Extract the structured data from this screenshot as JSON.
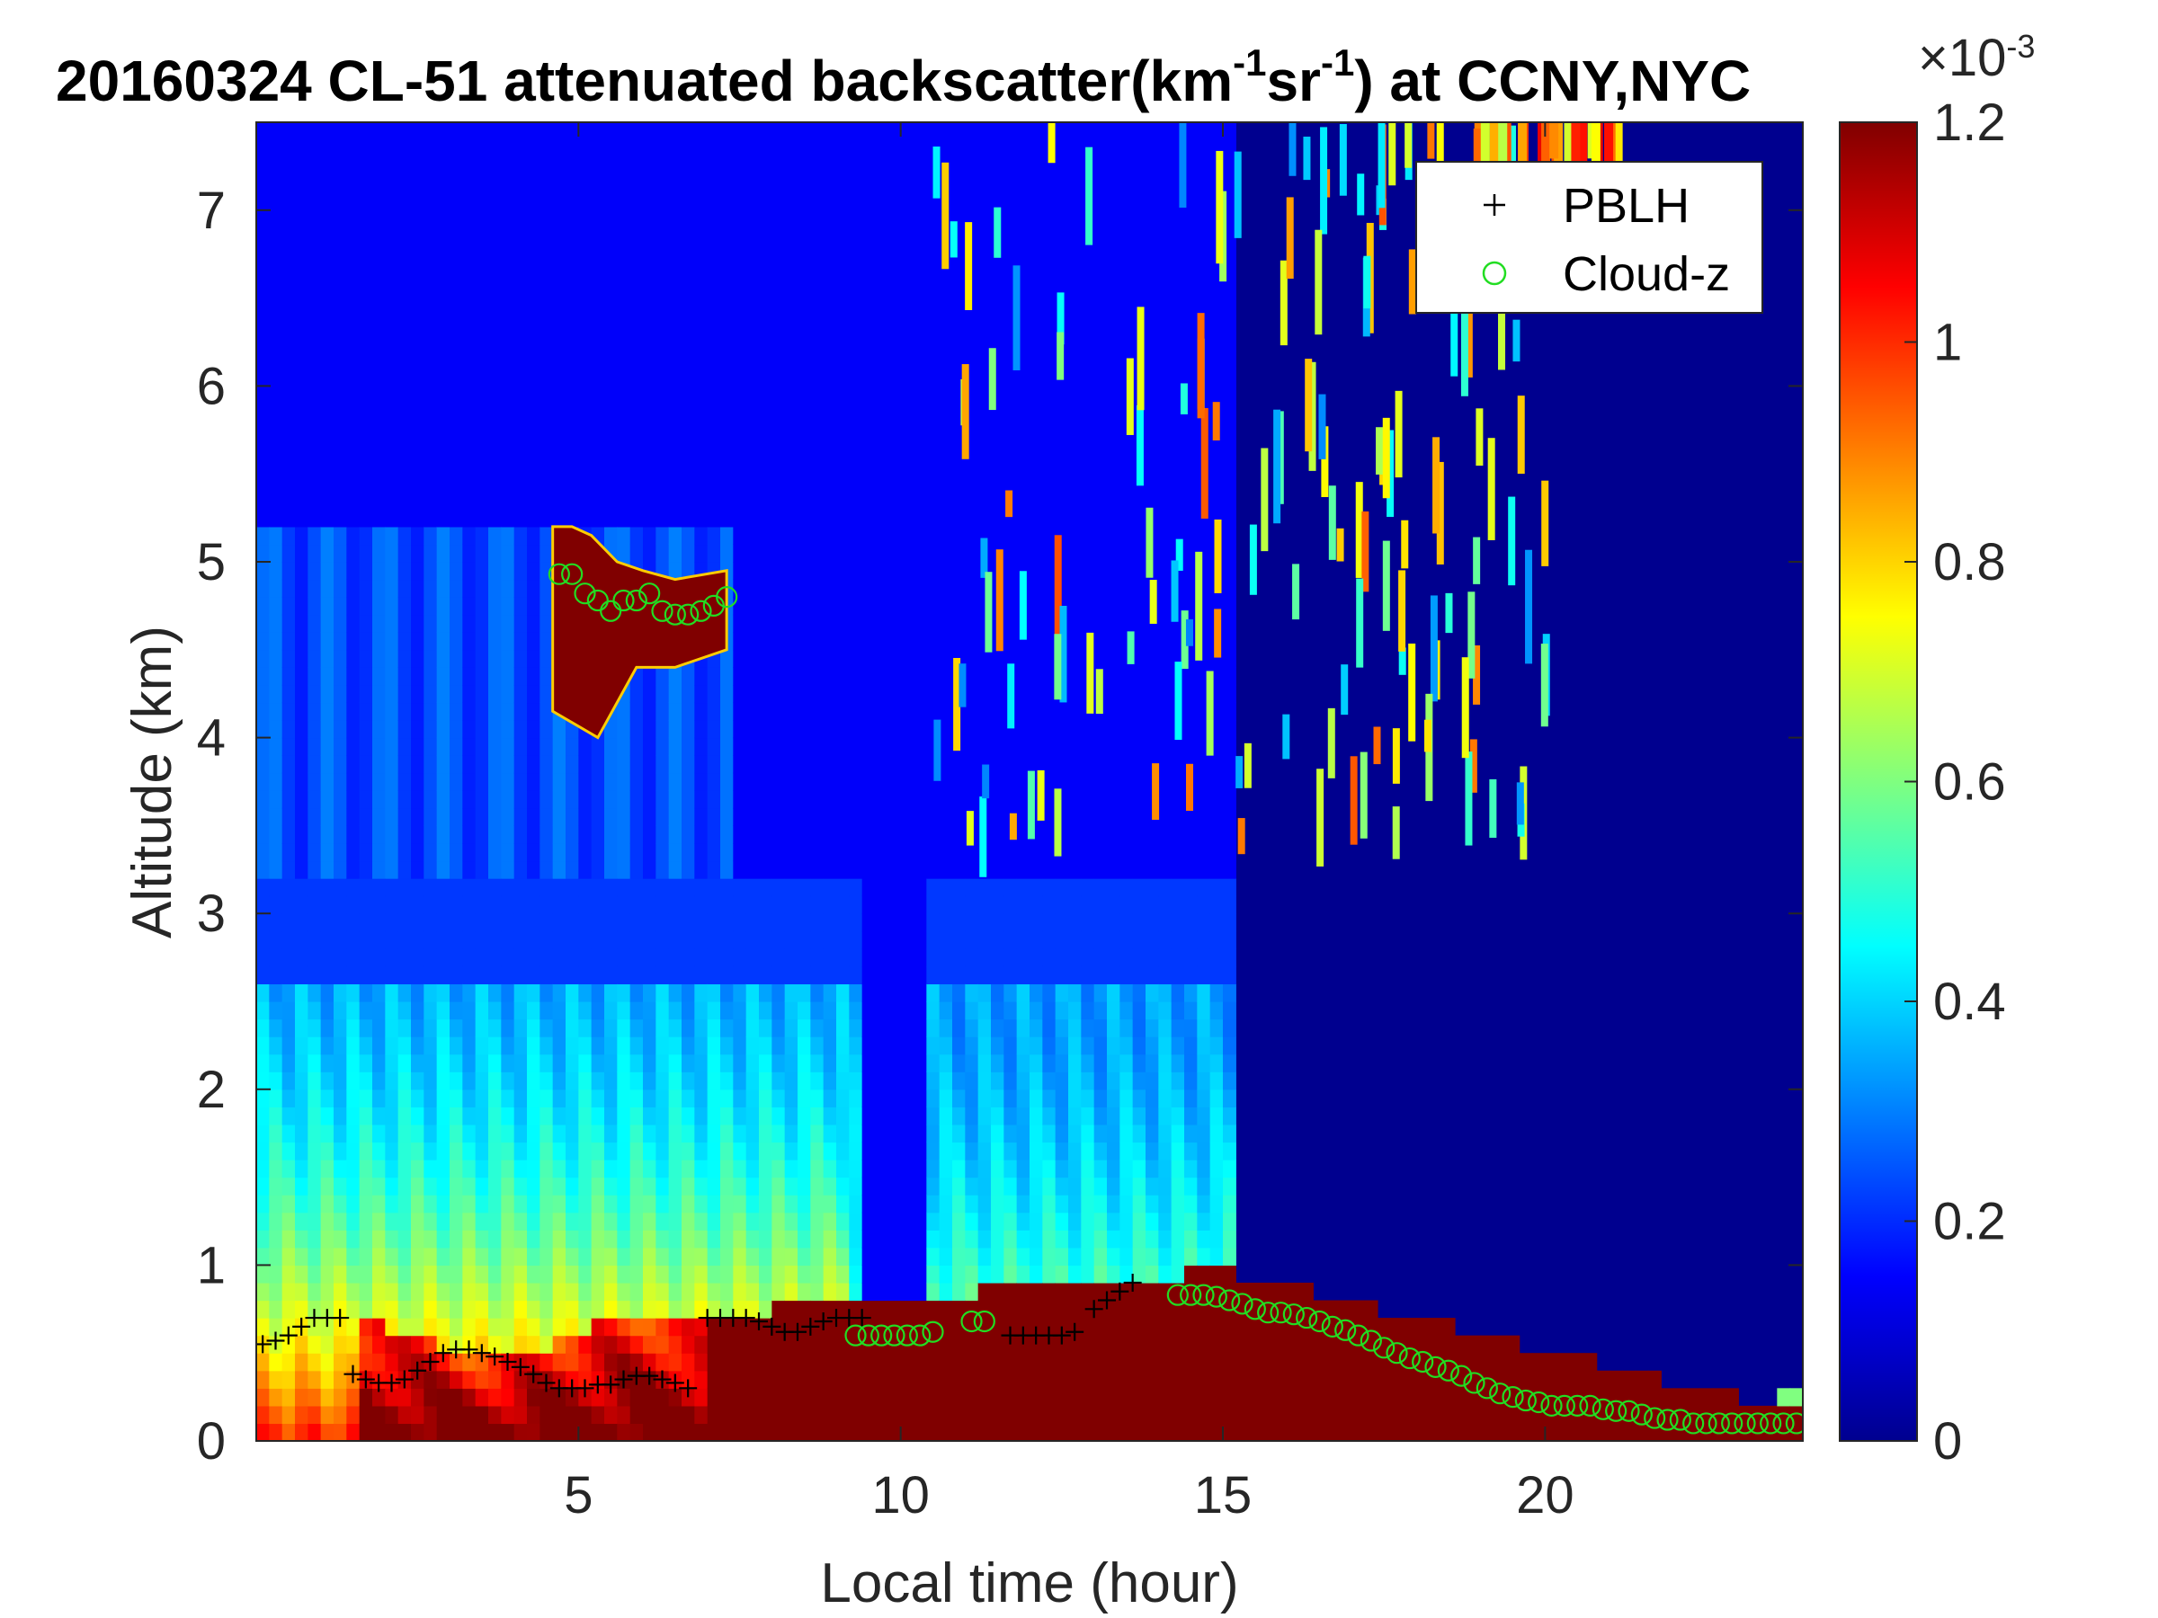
{
  "chart_data": {
    "type": "heatmap",
    "title": {
      "prefix": "20160324  CL-51 attenuated backscatter(km",
      "sup1": "-1",
      "mid": "sr",
      "sup2": "-1",
      "suffix": ") at CCNY,NYC"
    },
    "xlabel": "Local time (hour)",
    "ylabel": "Altitude (km)",
    "xlim": [
      0,
      24
    ],
    "ylim": [
      0,
      7.5
    ],
    "xticks": [
      "5",
      "10",
      "15",
      "20"
    ],
    "xtick_values": [
      5,
      10,
      15,
      20
    ],
    "yticks": [
      "0",
      "1",
      "2",
      "3",
      "4",
      "5",
      "6",
      "7"
    ],
    "ytick_values": [
      0,
      1,
      2,
      3,
      4,
      5,
      6,
      7
    ],
    "colorbar": {
      "colormap": "jet",
      "range": [
        0,
        0.0012
      ],
      "ticks": [
        "0",
        "0.2",
        "0.4",
        "0.6",
        "0.8",
        "1",
        "1.2"
      ],
      "tick_values": [
        0,
        0.2,
        0.4,
        0.6,
        0.8,
        1.0,
        1.2
      ],
      "exponent_label": "10",
      "exponent_sup": "-3",
      "exponent_prefix": "×"
    },
    "legend": {
      "position": "top-right",
      "entries": [
        {
          "label": "PBLH",
          "marker": "+",
          "color": "#000000"
        },
        {
          "label": "Cloud-z",
          "marker": "o",
          "color": "#22dd22"
        }
      ]
    },
    "series": [
      {
        "name": "PBLH",
        "marker": "+",
        "color": "#000000",
        "x": [
          0.1,
          0.3,
          0.5,
          0.7,
          0.9,
          1.1,
          1.3,
          1.5,
          1.7,
          1.9,
          2.1,
          2.3,
          2.5,
          2.7,
          2.9,
          3.1,
          3.3,
          3.5,
          3.7,
          3.9,
          4.1,
          4.3,
          4.5,
          4.7,
          4.9,
          5.1,
          5.3,
          5.5,
          5.7,
          5.9,
          6.1,
          6.3,
          6.5,
          6.7,
          7.0,
          7.2,
          7.4,
          7.6,
          7.8,
          8.0,
          8.2,
          8.4,
          8.6,
          8.8,
          9.0,
          9.2,
          9.4,
          11.7,
          11.9,
          12.1,
          12.3,
          12.5,
          12.7,
          13.0,
          13.2,
          13.4,
          13.6
        ],
        "y": [
          0.55,
          0.57,
          0.6,
          0.65,
          0.7,
          0.7,
          0.7,
          0.38,
          0.35,
          0.33,
          0.33,
          0.35,
          0.4,
          0.45,
          0.5,
          0.52,
          0.52,
          0.5,
          0.48,
          0.45,
          0.42,
          0.38,
          0.33,
          0.3,
          0.3,
          0.3,
          0.32,
          0.32,
          0.35,
          0.37,
          0.37,
          0.35,
          0.33,
          0.3,
          0.7,
          0.7,
          0.7,
          0.7,
          0.68,
          0.65,
          0.62,
          0.62,
          0.65,
          0.68,
          0.7,
          0.7,
          0.7,
          0.6,
          0.6,
          0.6,
          0.6,
          0.6,
          0.62,
          0.75,
          0.8,
          0.85,
          0.9
        ]
      },
      {
        "name": "Cloud-z",
        "marker": "o",
        "color": "#22dd22",
        "x": [
          4.7,
          4.9,
          5.1,
          5.3,
          5.5,
          5.7,
          5.9,
          6.1,
          6.3,
          6.5,
          6.7,
          6.9,
          7.1,
          7.3,
          9.3,
          9.5,
          9.7,
          9.9,
          10.1,
          10.3,
          10.5,
          11.1,
          11.3,
          14.3,
          14.5,
          14.7,
          14.9,
          15.1,
          15.3,
          15.5,
          15.7,
          15.9,
          16.1,
          16.3,
          16.5,
          16.7,
          16.9,
          17.1,
          17.3,
          17.5,
          17.7,
          17.9,
          18.1,
          18.3,
          18.5,
          18.7,
          18.9,
          19.1,
          19.3,
          19.5,
          19.7,
          19.9,
          20.1,
          20.3,
          20.5,
          20.7,
          20.9,
          21.1,
          21.3,
          21.5,
          21.7,
          21.9,
          22.1,
          22.3,
          22.5,
          22.7,
          22.9,
          23.1,
          23.3,
          23.5,
          23.7,
          23.9
        ],
        "y": [
          4.93,
          4.93,
          4.82,
          4.78,
          4.72,
          4.78,
          4.78,
          4.82,
          4.72,
          4.7,
          4.7,
          4.72,
          4.75,
          4.8,
          0.6,
          0.6,
          0.6,
          0.6,
          0.6,
          0.6,
          0.62,
          0.68,
          0.68,
          0.83,
          0.83,
          0.83,
          0.82,
          0.8,
          0.78,
          0.75,
          0.73,
          0.73,
          0.72,
          0.7,
          0.68,
          0.65,
          0.63,
          0.6,
          0.57,
          0.53,
          0.5,
          0.47,
          0.45,
          0.42,
          0.4,
          0.37,
          0.33,
          0.3,
          0.27,
          0.25,
          0.23,
          0.22,
          0.2,
          0.2,
          0.2,
          0.2,
          0.18,
          0.17,
          0.17,
          0.15,
          0.13,
          0.12,
          0.12,
          0.1,
          0.1,
          0.1,
          0.1,
          0.1,
          0.1,
          0.1,
          0.1,
          0.1
        ]
      }
    ]
  }
}
